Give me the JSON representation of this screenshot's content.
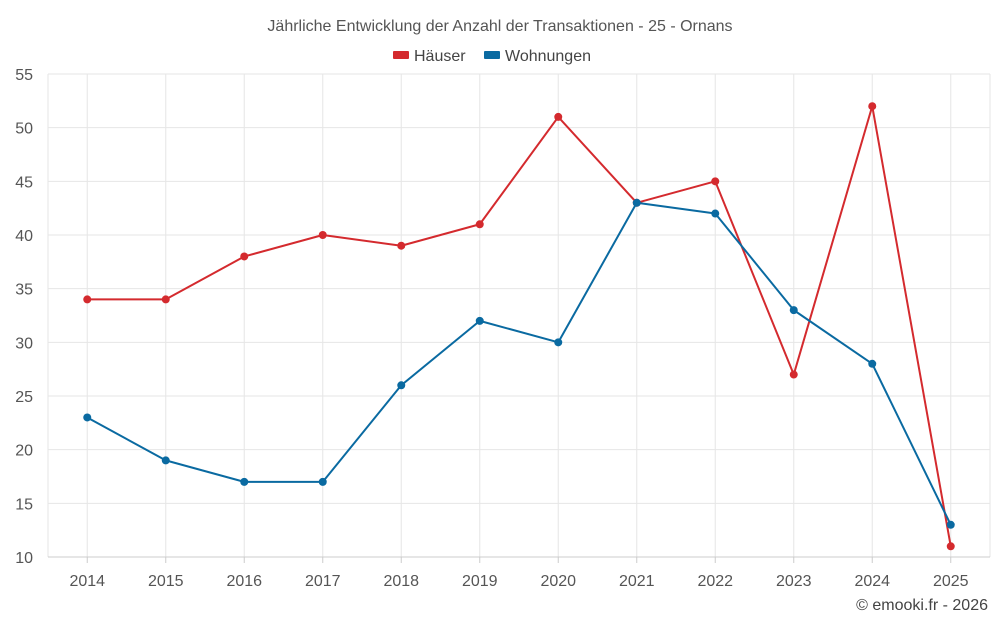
{
  "chart_data": {
    "type": "line",
    "title": "Jährliche Entwicklung der Anzahl der Transaktionen - 25 - Ornans",
    "categories": [
      "2014",
      "2015",
      "2016",
      "2017",
      "2018",
      "2019",
      "2020",
      "2021",
      "2022",
      "2023",
      "2024",
      "2025"
    ],
    "series": [
      {
        "name": "Häuser",
        "color": "#d42a2e",
        "values": [
          34,
          34,
          38,
          40,
          39,
          41,
          51,
          43,
          45,
          27,
          52,
          11
        ]
      },
      {
        "name": "Wohnungen",
        "color": "#0a6aa1",
        "values": [
          23,
          19,
          17,
          17,
          26,
          32,
          30,
          43,
          42,
          33,
          28,
          13
        ]
      }
    ],
    "ylim": [
      10,
      55
    ],
    "yticks": [
      10,
      15,
      20,
      25,
      30,
      35,
      40,
      45,
      50,
      55
    ],
    "legend_position": "top-center",
    "grid": true
  },
  "credit": "© emooki.fr - 2026"
}
